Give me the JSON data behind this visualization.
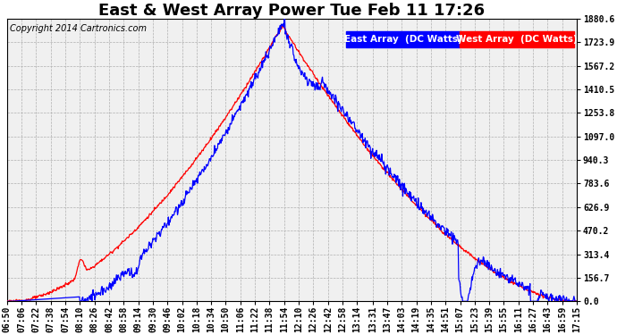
{
  "title": "East & West Array Power Tue Feb 11 17:26",
  "copyright": "Copyright 2014 Cartronics.com",
  "legend_east": "East Array  (DC Watts)",
  "legend_west": "West Array  (DC Watts)",
  "east_color": "#0000ff",
  "west_color": "#ff0000",
  "background_color": "#ffffff",
  "grid_color": "#b0b0b0",
  "plot_bg_color": "#f0f0f0",
  "yticks": [
    0.0,
    156.7,
    313.4,
    470.2,
    626.9,
    783.6,
    940.3,
    1097.0,
    1253.8,
    1410.5,
    1567.2,
    1723.9,
    1880.6
  ],
  "ymax": 1880.6,
  "ymin": 0.0,
  "xtick_labels": [
    "06:50",
    "07:06",
    "07:22",
    "07:38",
    "07:54",
    "08:10",
    "08:26",
    "08:42",
    "08:58",
    "09:14",
    "09:30",
    "09:46",
    "10:02",
    "10:18",
    "10:34",
    "10:50",
    "11:06",
    "11:22",
    "11:38",
    "11:54",
    "12:10",
    "12:26",
    "12:42",
    "12:58",
    "13:14",
    "13:31",
    "13:47",
    "14:03",
    "14:19",
    "14:35",
    "14:51",
    "15:07",
    "15:23",
    "15:39",
    "15:55",
    "16:11",
    "16:27",
    "16:43",
    "16:59",
    "17:15"
  ],
  "title_fontsize": 13,
  "copyright_fontsize": 7,
  "tick_fontsize": 7,
  "legend_fontsize": 7.5
}
